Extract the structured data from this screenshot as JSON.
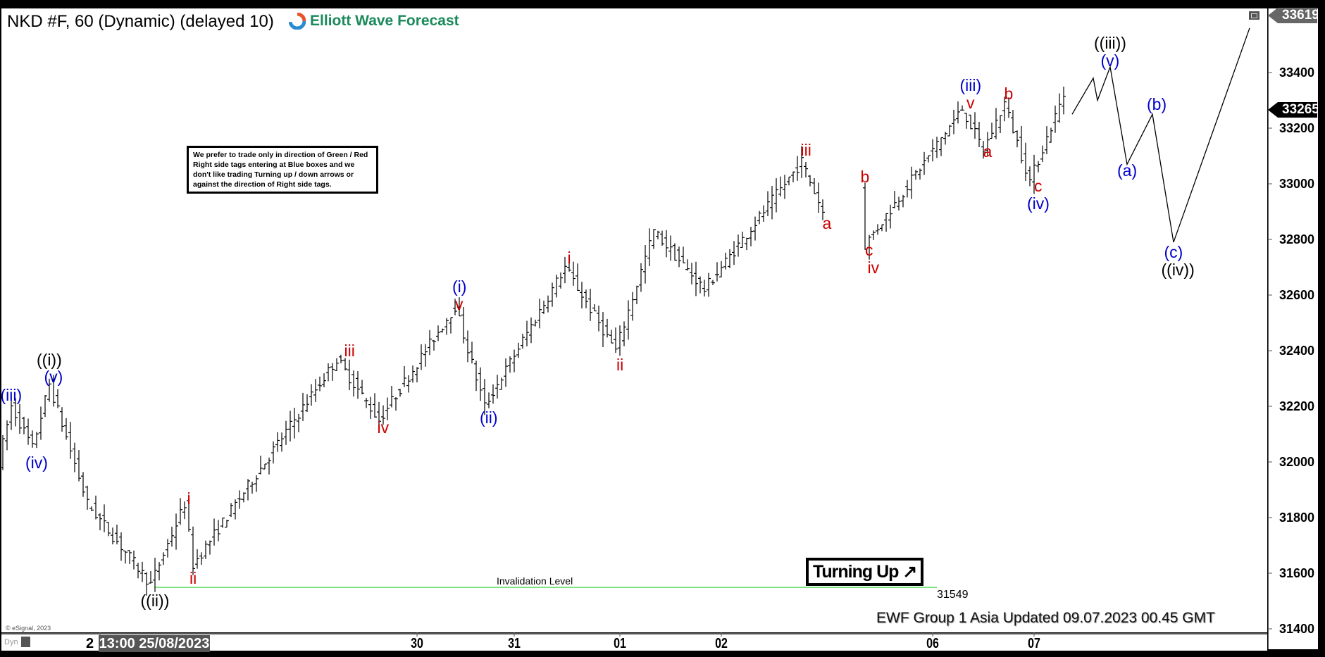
{
  "header": {
    "title": "NKD #F, 60 (Dynamic) (delayed 10)",
    "brand": "Elliott Wave Forecast"
  },
  "note": "We prefer to trade only in direction of Green / Red Right side tags entering at Blue boxes and we don't like trading Turning up / down arrows or against the direction of Right side tags.",
  "turning_label": "Turning Up",
  "turning_arrow": "↗",
  "invalidation": {
    "label": "Invalidation Level",
    "value": "31549",
    "color": "#66dd66"
  },
  "updated": "EWF Group 1 Asia Updated 09.07.2023 00.45 GMT",
  "copyright": "© eSignal, 2023",
  "dyn_label": "Dyn",
  "price_tags": {
    "high": "33619",
    "last": "33265"
  },
  "chart_data": {
    "type": "ohlc",
    "ylim": [
      31400,
      33619
    ],
    "y_ticks": [
      "33400",
      "33200",
      "33000",
      "32800",
      "32600",
      "32400",
      "32200",
      "32000",
      "31800",
      "31600",
      "31400"
    ],
    "x_ticks": [
      {
        "label": "2",
        "bar": 23
      },
      {
        "label": "30",
        "bar": 98
      },
      {
        "label": "31",
        "bar": 121
      },
      {
        "label": "01",
        "bar": 146
      },
      {
        "label": "02",
        "bar": 170
      },
      {
        "label": "06",
        "bar": 220
      },
      {
        "label": "07",
        "bar": 244
      }
    ],
    "x_highlight": "13:00 25/08/2023",
    "price_path": [
      [
        0,
        32000
      ],
      [
        3,
        32200
      ],
      [
        8,
        32050
      ],
      [
        12,
        32280
      ],
      [
        21,
        31850
      ],
      [
        36,
        31560
      ],
      [
        44,
        31850
      ],
      [
        46,
        31630
      ],
      [
        80,
        32370
      ],
      [
        90,
        32150
      ],
      [
        108,
        32560
      ],
      [
        115,
        32200
      ],
      [
        134,
        32700
      ],
      [
        146,
        32400
      ],
      [
        155,
        32830
      ],
      [
        167,
        32620
      ],
      [
        190,
        33080
      ],
      [
        195,
        32900
      ],
      null,
      [
        204,
        33000
      ],
      [
        205,
        32780
      ],
      [
        228,
        33270
      ],
      [
        233,
        33120
      ],
      [
        238,
        33290
      ],
      [
        244,
        33010
      ],
      [
        252,
        33320
      ]
    ],
    "projection": [
      [
        253,
        33250
      ],
      [
        258,
        33380
      ],
      [
        259,
        33300
      ],
      [
        262,
        33420
      ],
      [
        266,
        33070
      ],
      [
        272,
        33250
      ],
      [
        277,
        32790
      ],
      [
        295,
        33560
      ]
    ],
    "wave_labels": [
      {
        "t": "(iii)",
        "c": "#0000cc",
        "bar": 2,
        "p": 32238
      },
      {
        "t": "(iv)",
        "c": "#0000cc",
        "bar": 8,
        "p": 31995
      },
      {
        "t": "((i))",
        "c": "#000000",
        "bar": 11,
        "p": 32367
      },
      {
        "t": "(v)",
        "c": "#0000cc",
        "bar": 12,
        "p": 32306
      },
      {
        "t": "((ii))",
        "c": "#000000",
        "bar": 36,
        "p": 31501
      },
      {
        "t": "i",
        "c": "#cc0000",
        "bar": 44,
        "p": 31868
      },
      {
        "t": "ii",
        "c": "#cc0000",
        "bar": 45,
        "p": 31582
      },
      {
        "t": "iii",
        "c": "#cc0000",
        "bar": 82,
        "p": 32400
      },
      {
        "t": "iv",
        "c": "#cc0000",
        "bar": 90,
        "p": 32122
      },
      {
        "t": "(i)",
        "c": "#0000cc",
        "bar": 108,
        "p": 32628
      },
      {
        "t": "v",
        "c": "#cc0000",
        "bar": 108,
        "p": 32582
      },
      {
        "t": "(ii)",
        "c": "#0000cc",
        "bar": 115,
        "p": 32157
      },
      {
        "t": "i",
        "c": "#cc0000",
        "bar": 134,
        "p": 32732
      },
      {
        "t": "ii",
        "c": "#cc0000",
        "bar": 146,
        "p": 32349
      },
      {
        "t": "iii",
        "c": "#cc0000",
        "bar": 190,
        "p": 33119
      },
      {
        "t": "a",
        "c": "#cc0000",
        "bar": 195,
        "p": 32858
      },
      {
        "t": "b",
        "c": "#cc0000",
        "bar": 204,
        "p": 33025
      },
      {
        "t": "c",
        "c": "#cc0000",
        "bar": 205,
        "p": 32762
      },
      {
        "t": "iv",
        "c": "#cc0000",
        "bar": 206,
        "p": 32719
      },
      {
        "t": "(iii)",
        "c": "#0000cc",
        "bar": 229,
        "p": 33354
      },
      {
        "t": "v",
        "c": "#cc0000",
        "bar": 229,
        "p": 33309
      },
      {
        "t": "a",
        "c": "#cc0000",
        "bar": 233,
        "p": 33114
      },
      {
        "t": "b",
        "c": "#cc0000",
        "bar": 238,
        "p": 33322
      },
      {
        "t": "c",
        "c": "#cc0000",
        "bar": 245,
        "p": 32990
      },
      {
        "t": "(iv)",
        "c": "#0000cc",
        "bar": 245,
        "p": 32934
      },
      {
        "t": "((iii))",
        "c": "#000000",
        "bar": 262,
        "p": 33504
      },
      {
        "t": "(v)",
        "c": "#0000cc",
        "bar": 262,
        "p": 33443
      },
      {
        "t": "(a)",
        "c": "#0000cc",
        "bar": 266,
        "p": 33048
      },
      {
        "t": "(b)",
        "c": "#0000cc",
        "bar": 273,
        "p": 33284
      },
      {
        "t": "(c)",
        "c": "#0000cc",
        "bar": 277,
        "p": 32754
      },
      {
        "t": "((iv))",
        "c": "#000000",
        "bar": 278,
        "p": 32691
      }
    ]
  }
}
